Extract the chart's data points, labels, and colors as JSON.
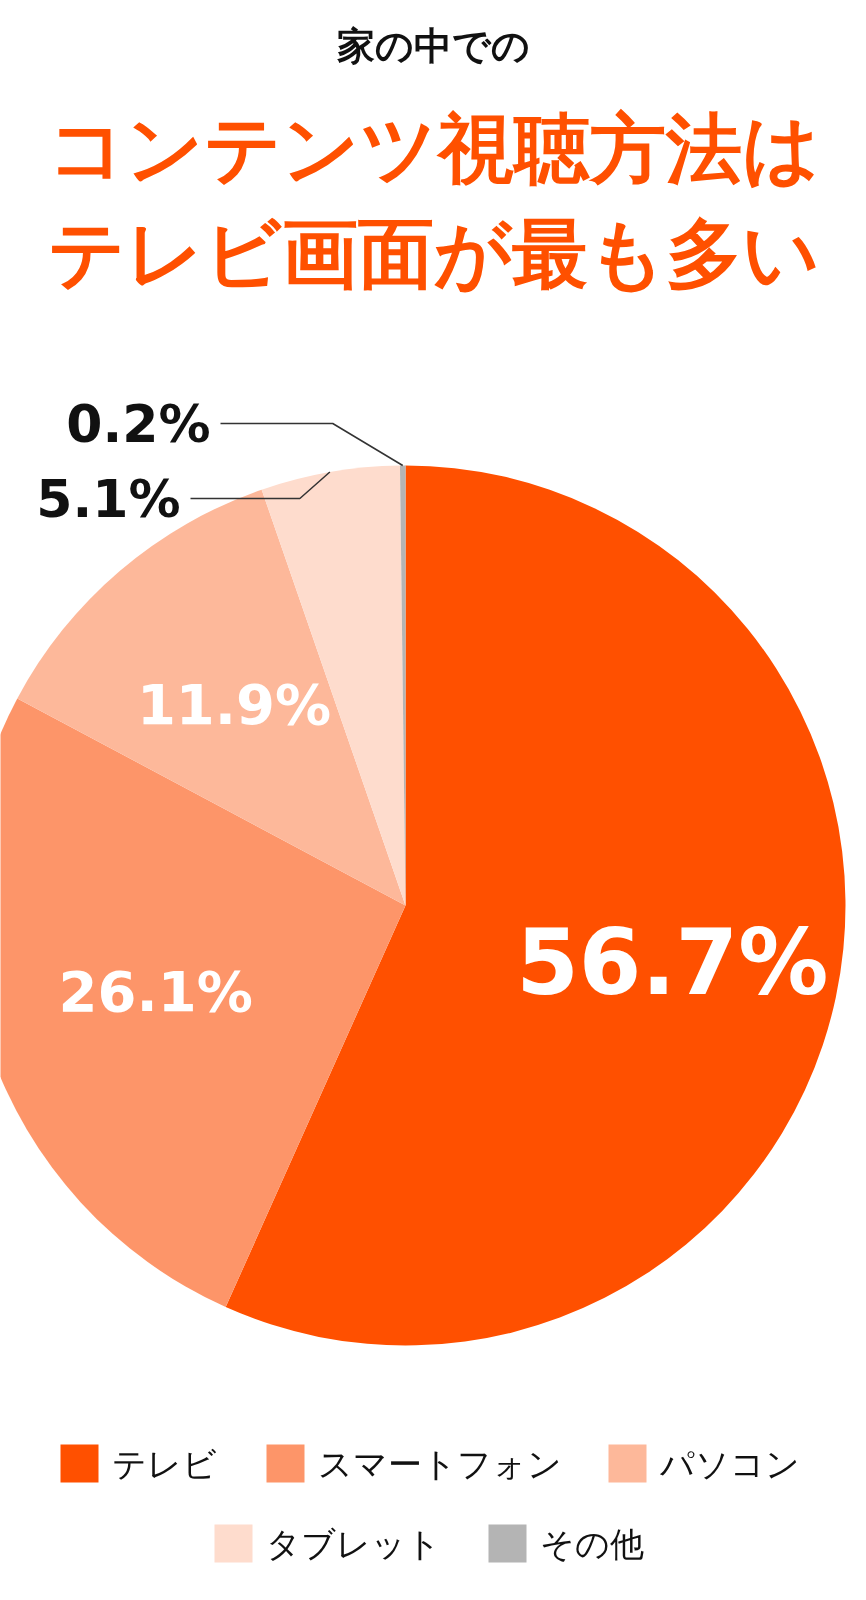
{
  "chart_data": {
    "type": "pie",
    "subtitle": "家の中での",
    "title": "コンテンツ視聴方法はテレビ画面が最も多い",
    "categories": [
      "テレビ",
      "スマートフォン",
      "パソコン",
      "タブレット",
      "その他"
    ],
    "values": [
      56.7,
      26.1,
      11.9,
      5.1,
      0.2
    ],
    "colors": [
      "#ff5000",
      "#fd9569",
      "#fdb89a",
      "#fedccd",
      "#b4b4b4"
    ],
    "value_labels": [
      "56.7%",
      "26.1%",
      "11.9%",
      "5.1%",
      "0.2%"
    ],
    "legend": "bottom"
  }
}
